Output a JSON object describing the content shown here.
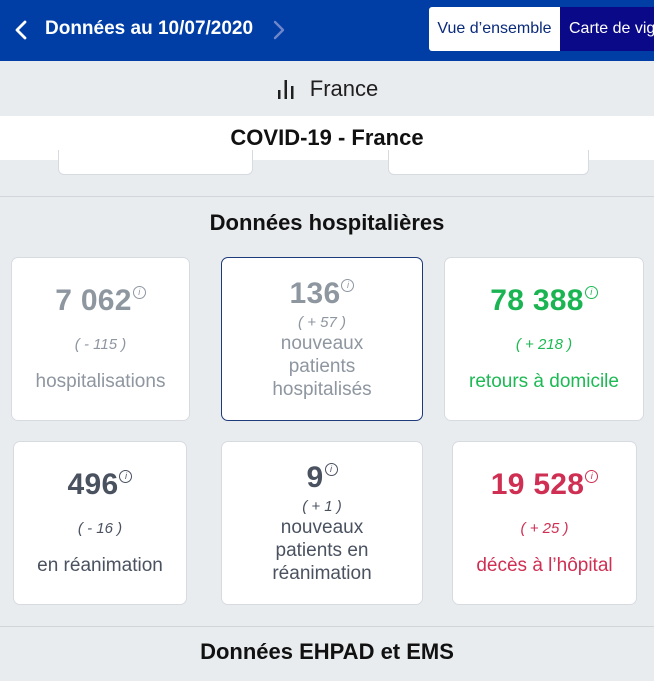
{
  "header": {
    "date_title": "Données au 10/07/2020",
    "tabs": [
      {
        "label": "Vue d’ensemble",
        "active": true
      },
      {
        "label": "Carte de vig",
        "active": false
      }
    ],
    "colors": {
      "bar": "#003da5",
      "active_tab_text": "#0a2a7a",
      "inactive_tab_bg": "#0a0a88"
    }
  },
  "region": {
    "label": "France",
    "icon": "bar-chart-icon"
  },
  "covid_title": "COVID-19 - France",
  "hospital_section": {
    "title": "Données hospitalières",
    "cards": [
      {
        "value": "7 062",
        "delta": "( - 115 )",
        "label": "hospitalisations",
        "tone": "grey"
      },
      {
        "value": "136",
        "delta": "( + 57 )",
        "label": "nouveaux patients hospitalisés",
        "tone": "grey"
      },
      {
        "value": "78 388",
        "delta": "( + 218 )",
        "label": "retours à domicile",
        "tone": "green"
      },
      {
        "value": "496",
        "delta": "( - 16 )",
        "label": "en réanimation",
        "tone": "slate"
      },
      {
        "value": "9",
        "delta": "( + 1 )",
        "label": "nouveaux patients en réanimation",
        "tone": "slate"
      },
      {
        "value": "19 528",
        "delta": "( + 25 )",
        "label": "décès à l’hôpital",
        "tone": "red"
      }
    ],
    "info_symbol": "i"
  },
  "ehpad_section": {
    "title": "Données EHPAD et EMS"
  }
}
